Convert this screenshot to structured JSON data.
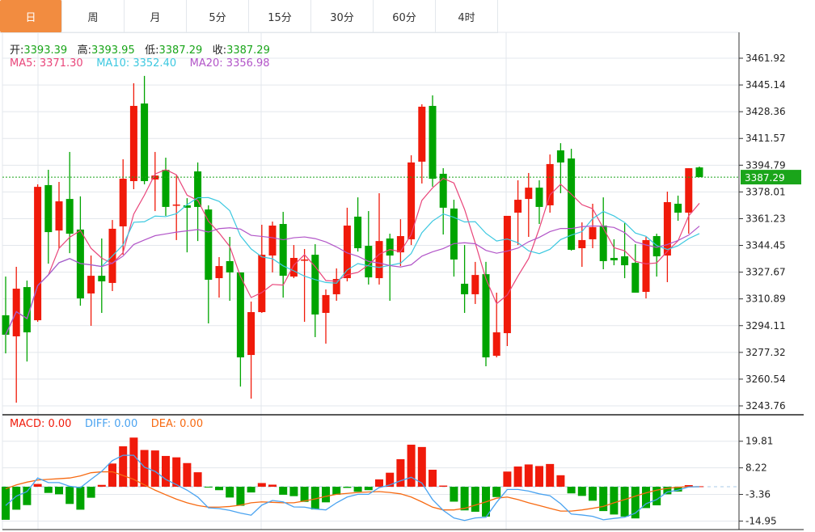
{
  "tabs": [
    {
      "label": "日",
      "active": true
    },
    {
      "label": "周"
    },
    {
      "label": "月"
    },
    {
      "label": "5分"
    },
    {
      "label": "15分"
    },
    {
      "label": "30分"
    },
    {
      "label": "60分"
    },
    {
      "label": "4时"
    }
  ],
  "ohlc_info": {
    "open_label": "开:",
    "open": "3393.39",
    "high_label": "高:",
    "high": "3393.95",
    "low_label": "低:",
    "low": "3387.29",
    "close_label": "收:",
    "close": "3387.29"
  },
  "ma_info": {
    "ma5": "MA5: 3371.30",
    "ma10": "MA10: 3352.40",
    "ma20": "MA20: 3356.98"
  },
  "macd_info": {
    "macd": "MACD: 0.00",
    "diff": "DIFF: 0.00",
    "dea": "DEA: 0.00"
  },
  "colors": {
    "up": "#f01a0a",
    "down": "#00a400",
    "ma5": "#e9457a",
    "ma10": "#3cc8e0",
    "ma20": "#b255c8",
    "diff": "#4aa3f0",
    "dea": "#f76a12",
    "active_tab": "#f28c40",
    "last_price_box": "#1aa51a"
  },
  "chart_data": [
    {
      "type": "candlestick",
      "price_axis_ticks": [
        "3461.92",
        "3445.14",
        "3428.36",
        "3411.57",
        "3394.79",
        "3378.01",
        "3361.23",
        "3344.45",
        "3327.67",
        "3310.89",
        "3294.11",
        "3277.32",
        "3260.54",
        "3243.76"
      ],
      "ylim": [
        3243.76,
        3461.92
      ],
      "last_price": "3387.29",
      "grid": true,
      "candles": [
        [
          3300.6,
          3324.9,
          3276.7,
          3288.4
        ],
        [
          3287.4,
          3331.0,
          3245.8,
          3317.3
        ],
        [
          3318.3,
          3322.4,
          3271.6,
          3289.9
        ],
        [
          3297.5,
          3382.8,
          3296.5,
          3381.2
        ],
        [
          3382.3,
          3391.9,
          3333.0,
          3352.8
        ],
        [
          3353.8,
          3384.3,
          3342.7,
          3372.1
        ],
        [
          3373.6,
          3403.1,
          3339.6,
          3351.8
        ],
        [
          3354.4,
          3375.2,
          3306.6,
          3311.2
        ],
        [
          3314.3,
          3338.1,
          3294.0,
          3325.4
        ],
        [
          3325.4,
          3348.8,
          3302.1,
          3321.9
        ],
        [
          3320.9,
          3360.4,
          3315.8,
          3354.9
        ],
        [
          3356.4,
          3398.5,
          3338.6,
          3386.3
        ],
        [
          3384.8,
          3446.2,
          3379.7,
          3432.0
        ],
        [
          3433.5,
          3450.8,
          3382.8,
          3384.8
        ],
        [
          3385.8,
          3403.1,
          3366.0,
          3388.3
        ],
        [
          3391.9,
          3399.5,
          3363.0,
          3368.6
        ],
        [
          3369.6,
          3388.3,
          3347.8,
          3370.1
        ],
        [
          3369.6,
          3374.1,
          3340.1,
          3368.1
        ],
        [
          3390.9,
          3396.5,
          3347.2,
          3368.6
        ],
        [
          3367.0,
          3369.6,
          3295.5,
          3322.9
        ],
        [
          3323.9,
          3337.1,
          3311.7,
          3331.5
        ],
        [
          3334.6,
          3349.8,
          3309.7,
          3327.5
        ],
        [
          3327.5,
          3327.5,
          3255.9,
          3274.2
        ],
        [
          3275.7,
          3309.2,
          3248.3,
          3302.6
        ],
        [
          3302.6,
          3357.4,
          3302.1,
          3338.6
        ],
        [
          3338.1,
          3359.4,
          3327.5,
          3356.9
        ],
        [
          3357.9,
          3365.5,
          3311.7,
          3325.4
        ],
        [
          3324.9,
          3344.7,
          3323.9,
          3336.6
        ],
        [
          3335.1,
          3342.2,
          3296.5,
          3335.6
        ],
        [
          3338.6,
          3345.2,
          3286.9,
          3301.1
        ],
        [
          3302.1,
          3316.8,
          3282.8,
          3313.3
        ],
        [
          3313.8,
          3330.0,
          3309.7,
          3323.4
        ],
        [
          3323.9,
          3368.1,
          3321.9,
          3356.9
        ],
        [
          3362.5,
          3374.6,
          3340.6,
          3342.7
        ],
        [
          3344.2,
          3366.0,
          3319.9,
          3324.4
        ],
        [
          3323.9,
          3377.2,
          3319.9,
          3347.2
        ],
        [
          3348.8,
          3351.8,
          3309.7,
          3338.1
        ],
        [
          3340.1,
          3360.9,
          3331.5,
          3350.3
        ],
        [
          3348.3,
          3401.0,
          3344.7,
          3396.5
        ],
        [
          3397.0,
          3433.0,
          3383.3,
          3431.5
        ],
        [
          3432.0,
          3438.6,
          3381.3,
          3386.3
        ],
        [
          3389.4,
          3392.9,
          3351.3,
          3368.1
        ],
        [
          3367.6,
          3373.1,
          3324.9,
          3335.6
        ],
        [
          3320.4,
          3344.7,
          3302.1,
          3313.8
        ],
        [
          3313.8,
          3334.1,
          3307.7,
          3325.9
        ],
        [
          3326.4,
          3334.1,
          3268.6,
          3274.2
        ],
        [
          3275.2,
          3314.8,
          3274.2,
          3289.9
        ],
        [
          3289.4,
          3363.0,
          3281.3,
          3363.0
        ],
        [
          3365.0,
          3385.3,
          3344.7,
          3373.1
        ],
        [
          3373.6,
          3389.9,
          3349.8,
          3380.7
        ],
        [
          3380.7,
          3385.3,
          3357.9,
          3368.6
        ],
        [
          3369.6,
          3401.5,
          3365.0,
          3395.5
        ],
        [
          3404.1,
          3408.6,
          3377.2,
          3396.5
        ],
        [
          3399.0,
          3405.1,
          3341.2,
          3341.7
        ],
        [
          3342.7,
          3358.9,
          3331.0,
          3347.8
        ],
        [
          3348.3,
          3370.6,
          3342.7,
          3355.9
        ],
        [
          3356.9,
          3374.6,
          3329.5,
          3334.6
        ],
        [
          3336.6,
          3348.3,
          3332.0,
          3335.1
        ],
        [
          3337.6,
          3358.4,
          3323.9,
          3332.0
        ],
        [
          3333.5,
          3345.2,
          3314.8,
          3314.8
        ],
        [
          3315.3,
          3349.8,
          3311.2,
          3347.8
        ],
        [
          3350.3,
          3351.8,
          3324.9,
          3337.6
        ],
        [
          3338.1,
          3378.2,
          3321.4,
          3371.6
        ],
        [
          3370.6,
          3375.7,
          3359.9,
          3365.0
        ],
        [
          3365.0,
          3392.9,
          3351.8,
          3392.9
        ],
        [
          3393.39,
          3393.95,
          3387.29,
          3387.29
        ]
      ],
      "ma_periods": [
        5,
        10,
        20
      ]
    },
    {
      "type": "bar+line",
      "macd_axis_ticks": [
        "19.81",
        "8.22",
        "-3.36",
        "-14.95"
      ],
      "ylim": [
        -17,
        23
      ],
      "macd": [
        -14.4,
        -10.0,
        -8.0,
        1.2,
        -2.7,
        -3.3,
        -7.5,
        -10.0,
        -4.8,
        0.8,
        10.1,
        17.6,
        21.4,
        16.0,
        15.8,
        13.4,
        12.8,
        10.3,
        6.3,
        -0.3,
        -1.5,
        -4.7,
        -8.3,
        -2.5,
        1.6,
        0.9,
        -3.5,
        -4.1,
        -6.6,
        -9.9,
        -6.8,
        -3.5,
        -0.5,
        -2.2,
        -1.5,
        3.2,
        6.1,
        12.0,
        18.3,
        17.3,
        7.4,
        0.5,
        -6.5,
        -10.3,
        -10.9,
        -13.0,
        -4.5,
        6.6,
        8.8,
        9.7,
        9.0,
        9.9,
        5.0,
        -2.9,
        -4.0,
        -6.1,
        -10.6,
        -12.1,
        -13.0,
        -13.8,
        -9.3,
        -8.1,
        -3.3,
        -2.1,
        0.7,
        0.2
      ],
      "diff": [
        -8.2,
        -4.1,
        -2.1,
        3.8,
        1.8,
        1.8,
        0.2,
        -0.4,
        3.2,
        6.7,
        11.4,
        13.7,
        13.7,
        8.5,
        6.7,
        3.2,
        0.9,
        -1.5,
        -4.5,
        -9.2,
        -9.5,
        -10.3,
        -11.5,
        -12.4,
        -8.0,
        -6.0,
        -6.6,
        -8.8,
        -8.9,
        -9.7,
        -10.1,
        -7.0,
        -4.5,
        -3.3,
        -3.3,
        -0.4,
        0.8,
        2.6,
        4.1,
        1.6,
        -5.6,
        -10.3,
        -13.6,
        -14.7,
        -13.6,
        -13.3,
        -6.8,
        -1.2,
        -1.2,
        -1.9,
        -3.1,
        -3.9,
        -7.4,
        -11.9,
        -12.3,
        -12.9,
        -14.4,
        -13.8,
        -13.3,
        -11.5,
        -7.4,
        -5.6,
        -2.3,
        -1.5,
        -0.1,
        0
      ],
      "dea": [
        -0.9,
        0.8,
        2.0,
        2.9,
        3.2,
        3.5,
        3.8,
        4.7,
        6.1,
        6.5,
        6.5,
        4.9,
        3.2,
        0.8,
        -1.5,
        -3.5,
        -5.4,
        -7.0,
        -8.2,
        -8.9,
        -8.9,
        -8.6,
        -8.0,
        -7.0,
        -6.6,
        -6.8,
        -7.0,
        -7.0,
        -6.2,
        -5.3,
        -4.2,
        -3.3,
        -2.9,
        -2.5,
        -2.3,
        -2.1,
        -2.5,
        -3.1,
        -4.5,
        -6.6,
        -8.9,
        -10.1,
        -10.1,
        -9.4,
        -8.0,
        -6.6,
        -5.0,
        -4.5,
        -5.6,
        -7.0,
        -8.2,
        -9.4,
        -10.6,
        -10.6,
        -10.1,
        -9.4,
        -8.6,
        -7.0,
        -5.6,
        -4.1,
        -2.7,
        -1.5,
        -0.7,
        -0.2,
        0,
        0
      ]
    }
  ]
}
